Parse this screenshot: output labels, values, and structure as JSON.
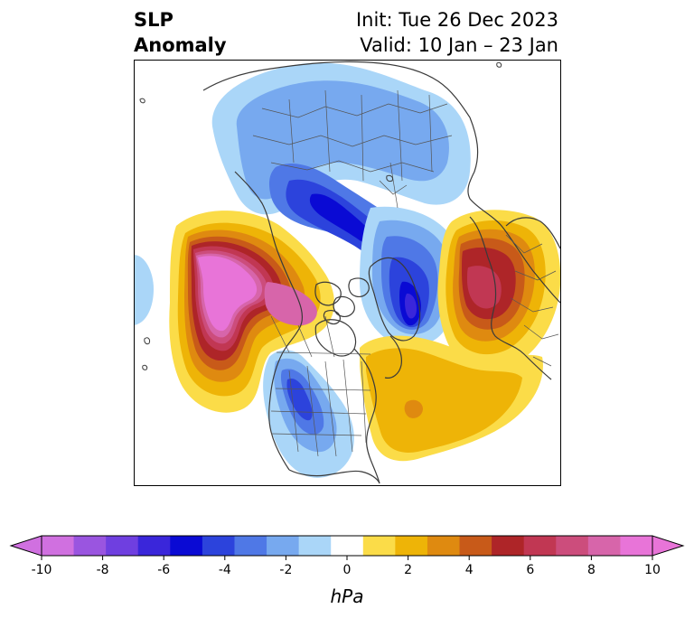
{
  "header": {
    "title_line1": "SLP",
    "title_line2": "Anomaly",
    "init_text": "Init: Tue 26 Dec 2023",
    "valid_text": "Valid: 10 Jan – 23 Jan"
  },
  "map": {
    "projection": "north-polar-stereographic",
    "features": [
      "coastlines",
      "country-borders",
      "us-state-borders"
    ]
  },
  "colorbar": {
    "unit": "hPa",
    "tick_labels": [
      "-10",
      "-8",
      "-6",
      "-4",
      "-2",
      "0",
      "2",
      "4",
      "6",
      "8",
      "10"
    ],
    "min": -10,
    "max": 10,
    "extend": "both",
    "colors": [
      "#d070e0",
      "#9a55e0",
      "#6f3fe0",
      "#3a26da",
      "#0a0ad4",
      "#2c43dc",
      "#4f78e6",
      "#77a9ef",
      "#aad6f8",
      "#ffffff",
      "#fbdc48",
      "#eeb407",
      "#df8a10",
      "#c85a19",
      "#ae2528",
      "#c13753",
      "#cc4d7c",
      "#d765aa",
      "#e874d8"
    ]
  },
  "anomalies": {
    "negative_centers": [
      "Canadian Arctic / Baffin Bay",
      "Greenland Sea",
      "western United States"
    ],
    "positive_centers": [
      "Gulf of Alaska",
      "Scandinavia",
      "western North Atlantic"
    ]
  }
}
